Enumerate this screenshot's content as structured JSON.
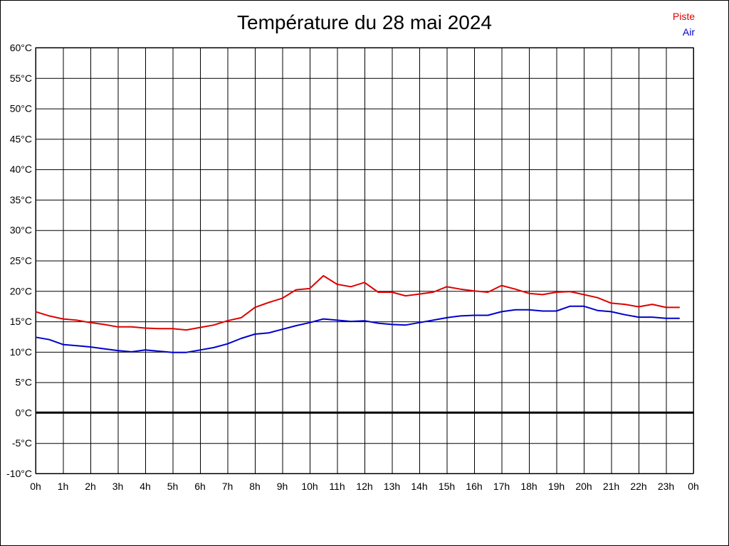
{
  "chart_data": {
    "type": "line",
    "title": "Température du 28 mai 2024",
    "xlabel": "",
    "ylabel": "",
    "ylim": [
      -10,
      60
    ],
    "xlim": [
      0,
      24
    ],
    "yticks": [
      -10,
      -5,
      0,
      5,
      10,
      15,
      20,
      25,
      30,
      35,
      40,
      45,
      50,
      55,
      60
    ],
    "y_unit": "°C",
    "xticks": [
      0,
      1,
      2,
      3,
      4,
      5,
      6,
      7,
      8,
      9,
      10,
      11,
      12,
      13,
      14,
      15,
      16,
      17,
      18,
      19,
      20,
      21,
      22,
      23,
      24
    ],
    "xtick_labels": [
      "0h",
      "1h",
      "2h",
      "3h",
      "4h",
      "5h",
      "6h",
      "7h",
      "8h",
      "9h",
      "10h",
      "11h",
      "12h",
      "13h",
      "14h",
      "15h",
      "16h",
      "17h",
      "18h",
      "19h",
      "20h",
      "21h",
      "22h",
      "23h",
      "0h"
    ],
    "grid": true,
    "legend_position": "top-right",
    "x": [
      0,
      0.5,
      1,
      1.5,
      2,
      2.5,
      3,
      3.5,
      4,
      4.5,
      5,
      5.5,
      6,
      6.5,
      7,
      7.5,
      8,
      8.5,
      9,
      9.5,
      10,
      10.5,
      11,
      11.5,
      12,
      12.5,
      13,
      13.5,
      14,
      14.5,
      15,
      15.5,
      16,
      16.5,
      17,
      17.5,
      18,
      18.5,
      19,
      19.5,
      20,
      20.5,
      21,
      21.5,
      22,
      22.5,
      23,
      23.5
    ],
    "series": [
      {
        "name": "Piste",
        "color": "#e00000",
        "values": [
          16.6,
          15.9,
          15.4,
          15.2,
          14.8,
          14.5,
          14.1,
          14.1,
          13.9,
          13.8,
          13.8,
          13.6,
          14.0,
          14.4,
          15.1,
          15.6,
          17.3,
          18.1,
          18.8,
          20.2,
          20.4,
          22.5,
          21.1,
          20.7,
          21.4,
          19.8,
          19.8,
          19.2,
          19.5,
          19.8,
          20.7,
          20.3,
          20.0,
          19.8,
          20.9,
          20.3,
          19.6,
          19.4,
          19.8,
          19.9,
          19.4,
          18.9,
          18.0,
          17.8,
          17.4,
          17.8,
          17.3,
          17.3
        ]
      },
      {
        "name": "Air",
        "color": "#0000cc",
        "values": [
          12.4,
          12.0,
          11.2,
          11.0,
          10.8,
          10.5,
          10.2,
          10.0,
          10.3,
          10.1,
          9.9,
          9.9,
          10.3,
          10.7,
          11.3,
          12.2,
          12.9,
          13.1,
          13.7,
          14.3,
          14.8,
          15.4,
          15.2,
          15.0,
          15.1,
          14.7,
          14.5,
          14.4,
          14.8,
          15.2,
          15.6,
          15.9,
          16.0,
          16.0,
          16.6,
          16.9,
          16.9,
          16.7,
          16.7,
          17.5,
          17.5,
          16.8,
          16.6,
          16.1,
          15.7,
          15.7,
          15.5,
          15.5
        ]
      }
    ],
    "baseline_value": 0
  }
}
